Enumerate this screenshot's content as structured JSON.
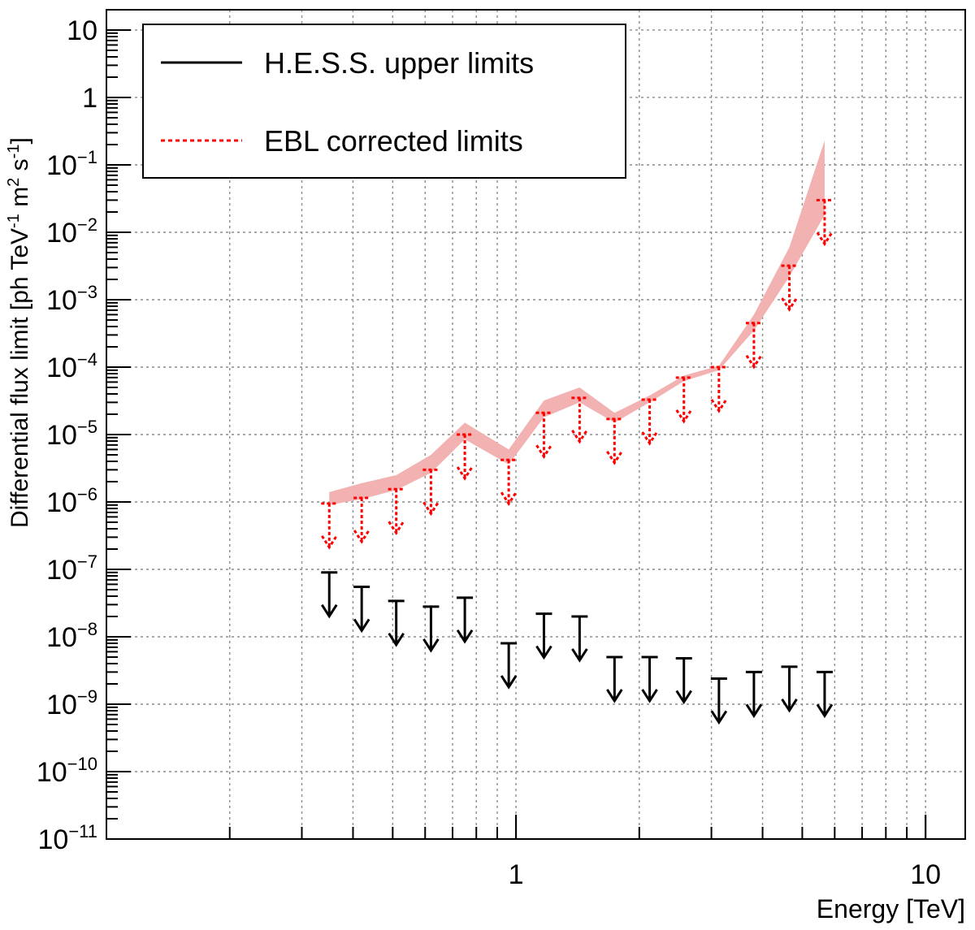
{
  "chart_data": {
    "type": "scatter",
    "title": "",
    "xlabel": "Energy [TeV]",
    "ylabel": "Differential flux limit [ph TeV^-1 m^2 s^-1]",
    "xscale": "log",
    "yscale": "log",
    "xlim": [
      0.1,
      12.5
    ],
    "ylim": [
      1e-11,
      20
    ],
    "grid": true,
    "legend_position": "top-left",
    "x_ticks": [
      {
        "value": 1,
        "label": "1"
      },
      {
        "value": 10,
        "label": "10"
      }
    ],
    "y_ticks": [
      {
        "value": 1e-11,
        "base": "10",
        "exp": "−11"
      },
      {
        "value": 1e-10,
        "base": "10",
        "exp": "−10"
      },
      {
        "value": 1e-09,
        "base": "10",
        "exp": "−9"
      },
      {
        "value": 1e-08,
        "base": "10",
        "exp": "−8"
      },
      {
        "value": 1e-07,
        "base": "10",
        "exp": "−7"
      },
      {
        "value": 1e-06,
        "base": "10",
        "exp": "−6"
      },
      {
        "value": 1e-05,
        "base": "10",
        "exp": "−5"
      },
      {
        "value": 0.0001,
        "base": "10",
        "exp": "−4"
      },
      {
        "value": 0.001,
        "base": "10",
        "exp": "−3"
      },
      {
        "value": 0.01,
        "base": "10",
        "exp": "−2"
      },
      {
        "value": 0.1,
        "base": "10",
        "exp": "−1"
      },
      {
        "value": 1,
        "base": "1",
        "exp": ""
      },
      {
        "value": 10,
        "base": "10",
        "exp": ""
      }
    ],
    "legend": [
      {
        "label": "H.E.S.S. upper limits",
        "style": "solid",
        "color": "#000000"
      },
      {
        "label": "EBL corrected limits",
        "style": "dotted",
        "color": "#ff0000"
      }
    ],
    "series": [
      {
        "name": "H.E.S.S. upper limits",
        "color": "#000000",
        "style": "upper-limit-arrow",
        "points": [
          {
            "x": 0.35,
            "y": 9e-08
          },
          {
            "x": 0.42,
            "y": 5.5e-08
          },
          {
            "x": 0.51,
            "y": 3.4e-08
          },
          {
            "x": 0.62,
            "y": 2.8e-08
          },
          {
            "x": 0.75,
            "y": 3.8e-08
          },
          {
            "x": 0.96,
            "y": 8e-09
          },
          {
            "x": 1.17,
            "y": 2.2e-08
          },
          {
            "x": 1.43,
            "y": 2e-08
          },
          {
            "x": 1.74,
            "y": 5e-09
          },
          {
            "x": 2.12,
            "y": 5e-09
          },
          {
            "x": 2.57,
            "y": 4.8e-09
          },
          {
            "x": 3.13,
            "y": 2.4e-09
          },
          {
            "x": 3.81,
            "y": 3e-09
          },
          {
            "x": 4.65,
            "y": 3.6e-09
          },
          {
            "x": 5.67,
            "y": 3e-09
          }
        ]
      },
      {
        "name": "EBL corrected limits",
        "color": "#ff0000",
        "style": "upper-limit-arrow-dotted",
        "points": [
          {
            "x": 0.35,
            "y": 9.5e-07
          },
          {
            "x": 0.42,
            "y": 1.15e-06
          },
          {
            "x": 0.51,
            "y": 1.55e-06
          },
          {
            "x": 0.62,
            "y": 3e-06
          },
          {
            "x": 0.75,
            "y": 1e-05
          },
          {
            "x": 0.96,
            "y": 4.2e-06
          },
          {
            "x": 1.17,
            "y": 2.1e-05
          },
          {
            "x": 1.43,
            "y": 3.5e-05
          },
          {
            "x": 1.74,
            "y": 1.7e-05
          },
          {
            "x": 2.12,
            "y": 3.3e-05
          },
          {
            "x": 2.57,
            "y": 7e-05
          },
          {
            "x": 3.13,
            "y": 0.0001
          },
          {
            "x": 3.81,
            "y": 0.00045
          },
          {
            "x": 4.65,
            "y": 0.0032
          },
          {
            "x": 5.67,
            "y": 0.03
          }
        ]
      }
    ],
    "band": {
      "color": "#f2b2b2",
      "x": [
        0.35,
        0.42,
        0.51,
        0.62,
        0.75,
        0.96,
        1.17,
        1.43,
        1.74,
        2.12,
        2.57,
        3.13,
        3.81,
        4.65,
        5.67
      ],
      "upper": [
        1.4e-06,
        1.9e-06,
        2.5e-06,
        5e-06,
        1.5e-05,
        6e-06,
        3.2e-05,
        5e-05,
        2.1e-05,
        3.8e-05,
        7.5e-05,
        0.000105,
        0.0006,
        0.006,
        0.23
      ],
      "lower": [
        9e-07,
        1.1e-06,
        1.5e-06,
        2.7e-06,
        8.5e-06,
        3.6e-06,
        1.8e-05,
        3e-05,
        1.5e-05,
        3e-05,
        6.2e-05,
        9e-05,
        0.00035,
        0.0022,
        0.018
      ]
    }
  }
}
